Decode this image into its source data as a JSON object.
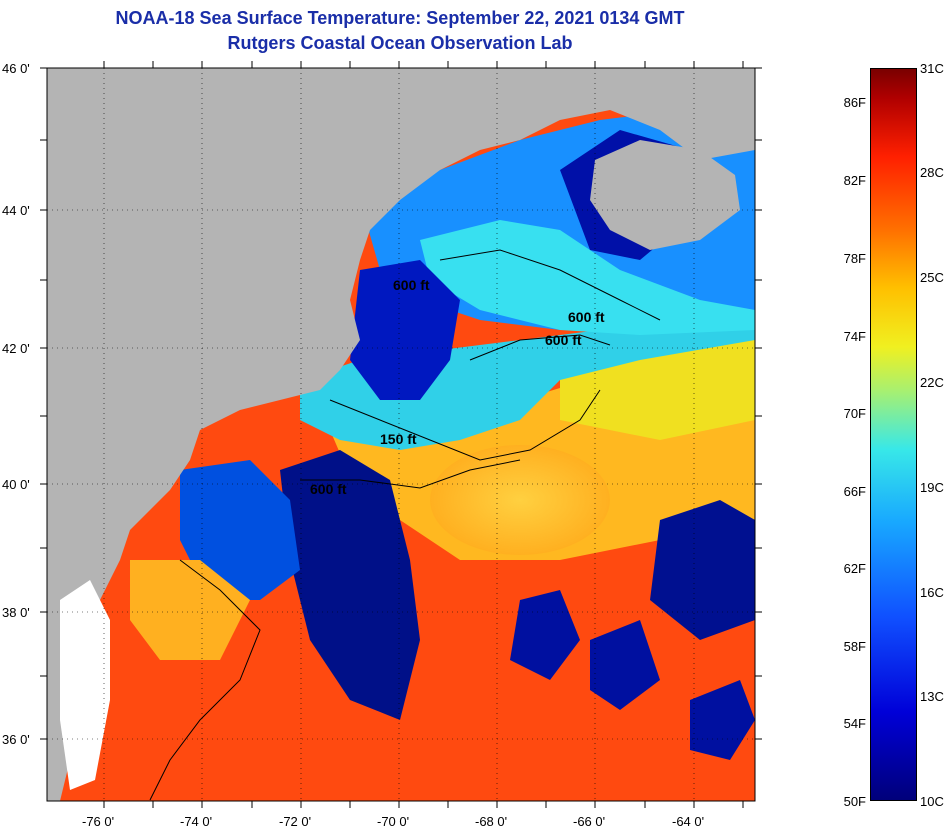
{
  "title": {
    "line1": "NOAA-18 Sea Surface Temperature:  September 22, 2021 0134 GMT",
    "line2": "Rutgers Coastal Ocean Observation Lab"
  },
  "axes": {
    "lat_labels": [
      "46 0'",
      "44 0'",
      "42 0'",
      "40 0'",
      "38 0'",
      "36 0'"
    ],
    "lon_labels": [
      "-76 0'",
      "-74 0'",
      "-72 0'",
      "-70 0'",
      "-68 0'",
      "-66 0'",
      "-64 0'"
    ]
  },
  "contours": [
    {
      "label": "600 ft"
    },
    {
      "label": "600 ft"
    },
    {
      "label": "600 ft"
    },
    {
      "label": "150 ft"
    },
    {
      "label": "600 ft"
    }
  ],
  "colorbar": {
    "fahrenheit": [
      "86F",
      "82F",
      "78F",
      "74F",
      "70F",
      "66F",
      "62F",
      "58F",
      "54F",
      "50F"
    ],
    "celsius": [
      "31C",
      "28C",
      "25C",
      "22C",
      "19C",
      "16C",
      "13C",
      "10C"
    ]
  },
  "colors": {
    "title": "#1a2ea8",
    "land": "#b4b4b4",
    "cold": "#0000a0",
    "warm": "#ff3000"
  }
}
